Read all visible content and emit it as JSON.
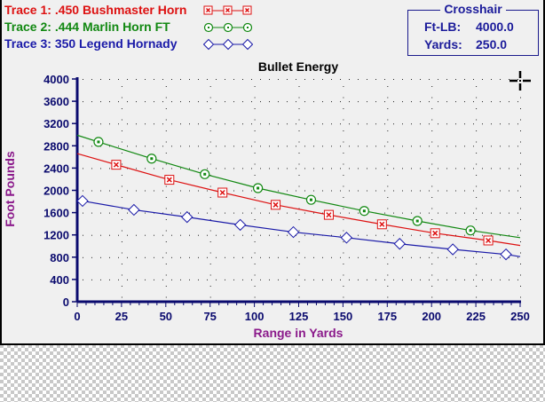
{
  "legend": {
    "traces": [
      {
        "label": "Trace 1:  .450 Bushmaster Horn",
        "color": "#dd1111",
        "marker": "crossed-square"
      },
      {
        "label": "Trace 2:  .444 Marlin Horn FT",
        "color": "#118811",
        "marker": "dotted-circle"
      },
      {
        "label": "Trace 3:  350 Legend Hornady",
        "color": "#1a1aa8",
        "marker": "diamond"
      }
    ]
  },
  "crosshair": {
    "title": "Crosshair",
    "ftlb_label": "Ft-LB:",
    "ftlb_value": "4000.0",
    "yards_label": "Yards:",
    "yards_value": "250.0",
    "cursor_icon": "crosshair-cursor"
  },
  "colors": {
    "axis": "#0a0a6e",
    "axis_title": "#8b1a8b",
    "panel_bg": "#f0f0f0"
  },
  "chart_data": {
    "type": "line",
    "title": "Bullet Energy",
    "xlabel": "Range in Yards",
    "ylabel": "Foot Pounds",
    "xlim": [
      0,
      250
    ],
    "ylim": [
      0,
      4000
    ],
    "x_ticks": [
      0,
      25,
      50,
      75,
      100,
      125,
      150,
      175,
      200,
      225,
      250
    ],
    "y_ticks": [
      0,
      400,
      800,
      1200,
      1600,
      2000,
      2400,
      2800,
      3200,
      3600,
      4000
    ],
    "grid": "dotted",
    "legend_position": "top-left",
    "series": [
      {
        "name": ".450 Bushmaster Horn",
        "color": "#dd1111",
        "marker": "crossed-square",
        "line_x": [
          0,
          250
        ],
        "line_y": [
          2660,
          1010
        ],
        "x": [
          0,
          22,
          52,
          82,
          112,
          142,
          172,
          202,
          232,
          250
        ],
        "y": [
          2660,
          2460,
          2190,
          1960,
          1740,
          1560,
          1390,
          1230,
          1100,
          1010
        ],
        "marker_x": [
          22,
          52,
          82,
          112,
          142,
          172,
          202,
          232
        ]
      },
      {
        "name": ".444 Marlin Horn FT",
        "color": "#118811",
        "marker": "dotted-circle",
        "x": [
          0,
          12,
          42,
          72,
          102,
          132,
          162,
          192,
          222,
          250
        ],
        "y": [
          2990,
          2870,
          2570,
          2290,
          2040,
          1830,
          1630,
          1450,
          1280,
          1150
        ],
        "marker_x": [
          12,
          42,
          72,
          102,
          132,
          162,
          192,
          222
        ]
      },
      {
        "name": "350 Legend Hornady",
        "color": "#1a1aa8",
        "marker": "diamond",
        "x": [
          3,
          32,
          62,
          92,
          122,
          152,
          182,
          212,
          242,
          250
        ],
        "y": [
          1810,
          1650,
          1520,
          1380,
          1250,
          1150,
          1040,
          940,
          850,
          810
        ],
        "marker_x": [
          3,
          32,
          62,
          92,
          122,
          152,
          182,
          212,
          242
        ]
      }
    ]
  }
}
